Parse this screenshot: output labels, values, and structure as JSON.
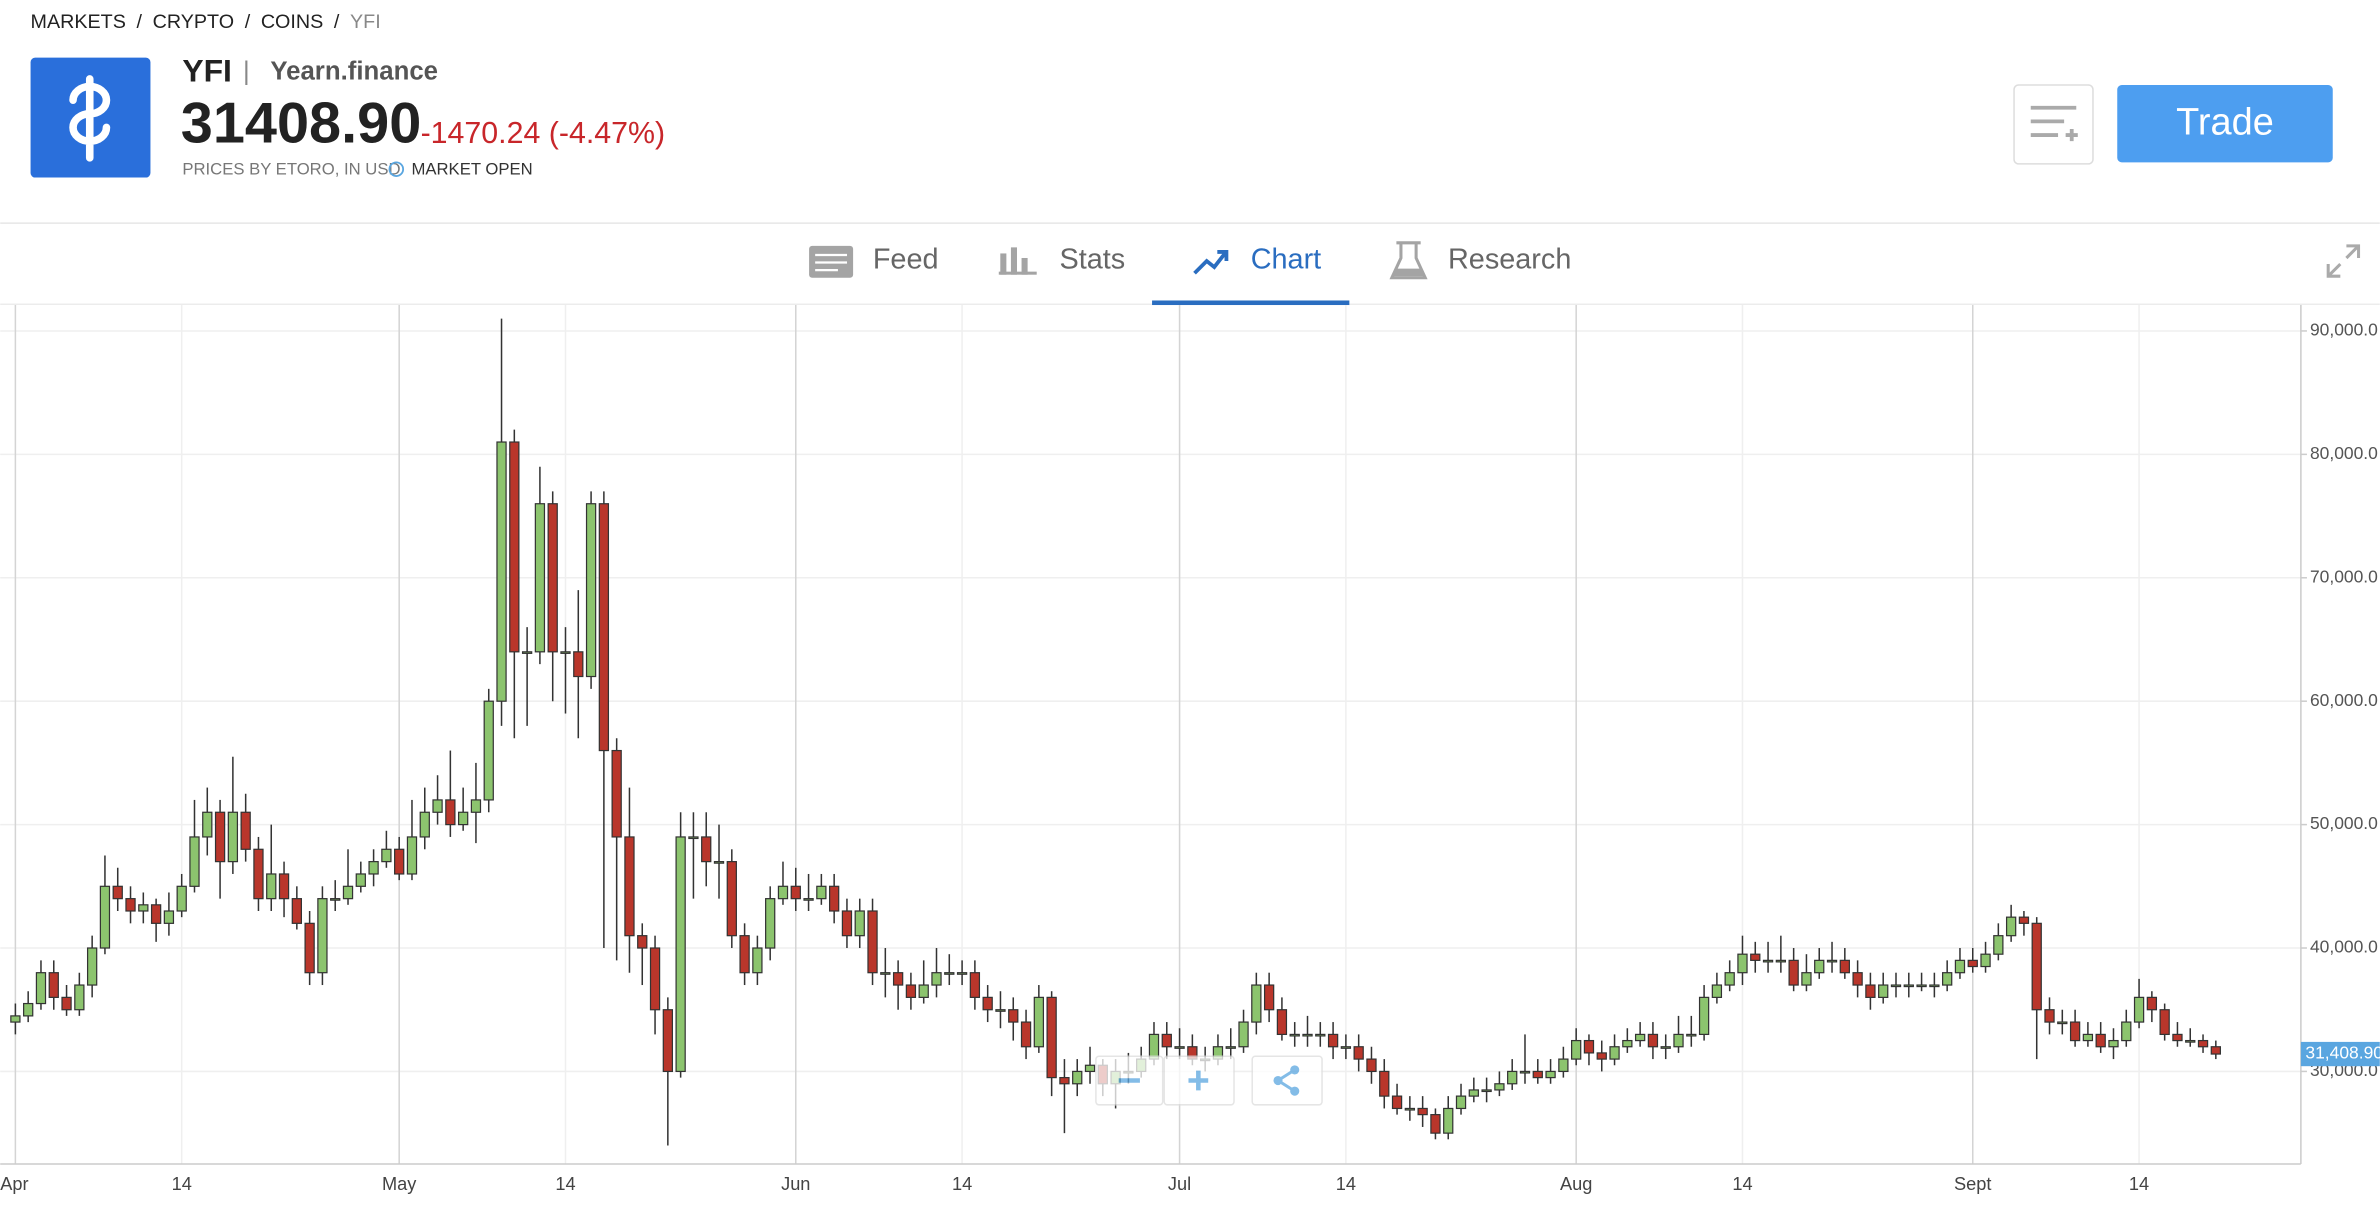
{
  "breadcrumb": {
    "items": [
      "MARKETS",
      "CRYPTO",
      "COINS",
      "YFI"
    ],
    "separator": "/"
  },
  "instrument": {
    "symbol": "YFI",
    "separator": "|",
    "name": "Yearn.finance",
    "price": "31408.90",
    "change": "-1470.24 (-4.47%)",
    "source": "PRICES BY ETORO, IN USD",
    "status": "MARKET OPEN"
  },
  "buttons": {
    "trade": "Trade"
  },
  "tabs": [
    "Feed",
    "Stats",
    "Chart",
    "Research"
  ],
  "active_tab": "Chart",
  "chart_data": {
    "type": "candlestick",
    "grid": true,
    "up_color": "#8cc46e",
    "down_color": "#b9362b",
    "categories": [
      "Apr",
      null,
      null,
      null,
      null,
      null,
      null,
      null,
      null,
      null,
      null,
      null,
      null,
      "14",
      null,
      null,
      null,
      null,
      null,
      null,
      null,
      null,
      null,
      null,
      null,
      null,
      null,
      null,
      null,
      null,
      "May",
      null,
      null,
      null,
      null,
      null,
      null,
      null,
      null,
      null,
      null,
      null,
      null,
      "14",
      null,
      null,
      null,
      null,
      null,
      null,
      null,
      null,
      null,
      null,
      null,
      null,
      null,
      null,
      null,
      null,
      null,
      "Jun",
      null,
      null,
      null,
      null,
      null,
      null,
      null,
      null,
      null,
      null,
      null,
      null,
      "14",
      null,
      null,
      null,
      null,
      null,
      null,
      null,
      null,
      null,
      null,
      null,
      null,
      null,
      null,
      null,
      null,
      "Jul",
      null,
      null,
      null,
      null,
      null,
      null,
      null,
      null,
      null,
      null,
      null,
      null,
      "14",
      null,
      null,
      null,
      null,
      null,
      null,
      null,
      null,
      null,
      null,
      null,
      null,
      null,
      null,
      null,
      null,
      null,
      "Aug",
      null,
      null,
      null,
      null,
      null,
      null,
      null,
      null,
      null,
      null,
      null,
      null,
      "14",
      null,
      null,
      null,
      null,
      null,
      null,
      null,
      null,
      null,
      null,
      null,
      null,
      null,
      null,
      null,
      null,
      null,
      "Sept",
      null,
      null,
      null,
      null,
      null,
      null,
      null,
      null,
      null,
      null,
      null,
      null,
      "14",
      null,
      null,
      null,
      null,
      null,
      null
    ],
    "open": [
      34000,
      34500,
      35500,
      38000,
      36000,
      35000,
      37000,
      40000,
      45000,
      44000,
      43000,
      43500,
      42000,
      43000,
      45000,
      49000,
      51000,
      47000,
      51000,
      48000,
      44000,
      46000,
      44000,
      42000,
      38000,
      44000,
      44000,
      45000,
      46000,
      47000,
      48000,
      46000,
      49000,
      51000,
      52000,
      50000,
      51000,
      52000,
      60000,
      81000,
      64000,
      64000,
      76000,
      64000,
      64000,
      62000,
      76000,
      56000,
      49000,
      41000,
      40000,
      35000,
      30000,
      49000,
      49000,
      47000,
      47000,
      41000,
      38000,
      40000,
      44000,
      45000,
      44000,
      44000,
      45000,
      43000,
      41000,
      43000,
      38000,
      38000,
      37000,
      36000,
      37000,
      38000,
      38000,
      38000,
      36000,
      35000,
      35000,
      34000,
      32000,
      36000,
      29500,
      29000,
      30000,
      30500,
      29000,
      30000,
      30000,
      31000,
      33000,
      32000,
      32000,
      31000,
      31000,
      32000,
      32000,
      34000,
      37000,
      35000,
      33000,
      33000,
      33000,
      33000,
      32000,
      32000,
      31000,
      30000,
      28000,
      27000,
      27000,
      26500,
      25000,
      27000,
      28000,
      28500,
      28500,
      29000,
      30000,
      30000,
      29500,
      30000,
      31000,
      32500,
      31500,
      31000,
      32000,
      32500,
      33000,
      32000,
      32000,
      33000,
      33000,
      36000,
      37000,
      38000,
      39500,
      39000,
      39000,
      39000,
      37000,
      38000,
      39000,
      39000,
      38000,
      37000,
      36000,
      37000,
      37000,
      37000,
      37000,
      37000,
      38000,
      39000,
      38500,
      39500,
      41000,
      42500,
      42000,
      35000,
      34000,
      34000,
      32500,
      33000,
      32000,
      32500,
      34000,
      36000,
      35000,
      33000,
      32500,
      32500,
      32000
    ],
    "high": [
      35500,
      36500,
      39000,
      39000,
      37000,
      38000,
      41000,
      47500,
      46500,
      45000,
      44500,
      44000,
      44500,
      46000,
      52000,
      53000,
      52000,
      55500,
      52500,
      49000,
      50000,
      47000,
      45000,
      43000,
      45000,
      45500,
      48000,
      47000,
      48000,
      49500,
      49000,
      52000,
      53000,
      54000,
      56000,
      53000,
      55000,
      61000,
      91000,
      82000,
      66000,
      79000,
      77000,
      66000,
      69000,
      77000,
      77000,
      57000,
      53000,
      42000,
      41000,
      36000,
      51000,
      51000,
      51000,
      50000,
      48000,
      42000,
      41000,
      45000,
      47000,
      46500,
      46000,
      46000,
      46000,
      44000,
      44000,
      44000,
      40000,
      39000,
      38000,
      39000,
      40000,
      39500,
      39000,
      39000,
      37000,
      36500,
      36000,
      35000,
      37000,
      36500,
      31000,
      31000,
      32000,
      31000,
      31000,
      31500,
      32000,
      34000,
      34000,
      33500,
      33000,
      32000,
      33000,
      33500,
      35000,
      38000,
      38000,
      36000,
      34000,
      34500,
      34000,
      34000,
      33000,
      33000,
      32000,
      31000,
      29000,
      28000,
      28000,
      27000,
      28000,
      29000,
      29500,
      29500,
      30000,
      31000,
      33000,
      31000,
      31000,
      32000,
      33500,
      33000,
      32500,
      33000,
      33500,
      34000,
      34000,
      33000,
      34500,
      34500,
      37000,
      38000,
      39000,
      41000,
      40500,
      40500,
      41000,
      40000,
      39500,
      40000,
      40500,
      40000,
      39000,
      38000,
      38000,
      38000,
      38000,
      38000,
      38000,
      39000,
      40000,
      40000,
      40500,
      42000,
      43500,
      43000,
      42500,
      36000,
      35000,
      35000,
      34000,
      34000,
      33500,
      35000,
      37500,
      36500,
      35500,
      34000,
      33500,
      33000,
      32500
    ],
    "low": [
      33000,
      34000,
      35000,
      35000,
      34500,
      34500,
      36000,
      39500,
      43000,
      42000,
      42000,
      40500,
      41000,
      42500,
      44500,
      47500,
      44000,
      46000,
      47000,
      43000,
      43000,
      42500,
      41500,
      37000,
      37000,
      43000,
      43500,
      44500,
      45000,
      46500,
      45500,
      45500,
      48000,
      50000,
      49000,
      49500,
      48500,
      51000,
      58000,
      57000,
      58000,
      63000,
      60000,
      59000,
      57000,
      61000,
      40000,
      39000,
      38000,
      37000,
      33000,
      24000,
      29500,
      44000,
      45000,
      44000,
      40000,
      37000,
      37000,
      39000,
      43500,
      43000,
      43000,
      43500,
      42000,
      40000,
      40000,
      37000,
      36000,
      35000,
      35000,
      35500,
      36000,
      37000,
      37000,
      35000,
      34000,
      33500,
      32500,
      31000,
      31500,
      28000,
      25000,
      28000,
      29000,
      28000,
      27000,
      29000,
      29500,
      30500,
      31000,
      31000,
      30500,
      30000,
      30500,
      31000,
      31500,
      33000,
      34000,
      32500,
      32000,
      32000,
      32000,
      31000,
      31000,
      30000,
      29000,
      27000,
      26500,
      26000,
      25500,
      24500,
      24500,
      26500,
      27500,
      27500,
      28000,
      28500,
      29000,
      29000,
      29000,
      29500,
      30500,
      30500,
      30000,
      30500,
      31500,
      32000,
      31000,
      31000,
      31500,
      32000,
      32500,
      35500,
      36500,
      37000,
      38000,
      38000,
      38000,
      36500,
      36500,
      37500,
      38000,
      37500,
      36000,
      35000,
      35500,
      36000,
      36000,
      36500,
      36000,
      36500,
      37500,
      38000,
      38000,
      39000,
      40500,
      41000,
      31000,
      33000,
      33000,
      32000,
      32000,
      31500,
      31000,
      32000,
      33500,
      34000,
      32500,
      32000,
      32000,
      31500,
      31000
    ],
    "close": [
      34500,
      35500,
      38000,
      36000,
      35000,
      37000,
      40000,
      45000,
      44000,
      43000,
      43500,
      42000,
      43000,
      45000,
      49000,
      51000,
      47000,
      51000,
      48000,
      44000,
      46000,
      44000,
      42000,
      38000,
      44000,
      44000,
      45000,
      46000,
      47000,
      48000,
      46000,
      49000,
      51000,
      52000,
      50000,
      51000,
      52000,
      60000,
      81000,
      64000,
      64000,
      76000,
      64000,
      64000,
      62000,
      76000,
      56000,
      49000,
      41000,
      40000,
      35000,
      30000,
      49000,
      49000,
      47000,
      47000,
      41000,
      38000,
      40000,
      44000,
      45000,
      44000,
      44000,
      45000,
      43000,
      41000,
      43000,
      38000,
      38000,
      37000,
      36000,
      37000,
      38000,
      38000,
      38000,
      36000,
      35000,
      35000,
      34000,
      32000,
      36000,
      29500,
      29000,
      30000,
      30500,
      29000,
      30000,
      30000,
      31000,
      33000,
      32000,
      32000,
      31000,
      31000,
      32000,
      32000,
      34000,
      37000,
      35000,
      33000,
      33000,
      33000,
      33000,
      32000,
      32000,
      31000,
      30000,
      28000,
      27000,
      27000,
      26500,
      25000,
      27000,
      28000,
      28500,
      28500,
      29000,
      30000,
      30000,
      29500,
      30000,
      31000,
      32500,
      31500,
      31000,
      32000,
      32500,
      33000,
      32000,
      32000,
      33000,
      33000,
      36000,
      37000,
      38000,
      39500,
      39000,
      39000,
      39000,
      37000,
      38000,
      39000,
      39000,
      38000,
      37000,
      36000,
      37000,
      37000,
      37000,
      37000,
      37000,
      38000,
      39000,
      38500,
      39500,
      41000,
      42500,
      42000,
      35000,
      34000,
      34000,
      32500,
      33000,
      32000,
      32500,
      34000,
      36000,
      35000,
      33000,
      32500,
      32500,
      32000,
      31408.9
    ],
    "ylim": [
      22500,
      92100
    ],
    "yticks": [
      {
        "value": 30000,
        "label": "30,000.0"
      },
      {
        "value": 40000,
        "label": "40,000.0"
      },
      {
        "value": 50000,
        "label": "50,000.0"
      },
      {
        "value": 60000,
        "label": "60,000.0"
      },
      {
        "value": 70000,
        "label": "70,000.0"
      },
      {
        "value": 80000,
        "label": "80,000.0"
      },
      {
        "value": 90000,
        "label": "90,000.0"
      }
    ],
    "last_price": {
      "value": 31408.9,
      "label": "31,408.90"
    }
  }
}
